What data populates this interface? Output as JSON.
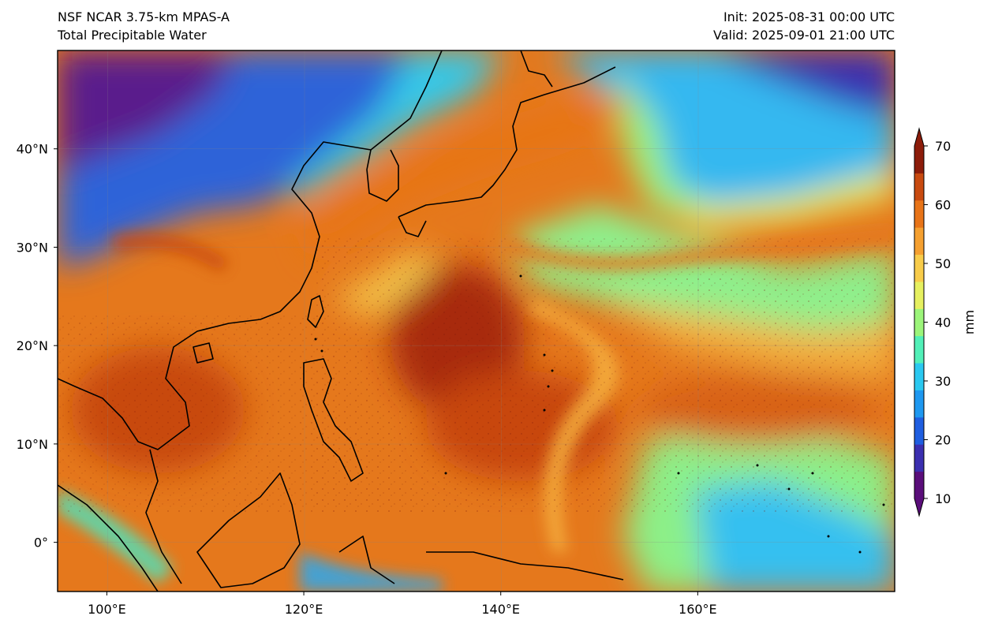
{
  "header": {
    "model": "NSF NCAR 3.75-km MPAS-A",
    "field": "Total Precipitable Water",
    "init": "Init: 2025-08-31 00:00 UTC",
    "valid": "Valid: 2025-09-01 21:00 UTC"
  },
  "map": {
    "lon_range": [
      95,
      180
    ],
    "lat_range": [
      -5,
      50
    ],
    "lon_ticks": [
      {
        "value": 100,
        "label": "100°E"
      },
      {
        "value": 120,
        "label": "120°E"
      },
      {
        "value": 140,
        "label": "140°E"
      },
      {
        "value": 160,
        "label": "160°E"
      }
    ],
    "lat_ticks": [
      {
        "value": 40,
        "label": "40°N"
      },
      {
        "value": 30,
        "label": "30°N"
      },
      {
        "value": 20,
        "label": "20°N"
      },
      {
        "value": 10,
        "label": "10°N"
      },
      {
        "value": 0,
        "label": "0°"
      }
    ]
  },
  "colorbar": {
    "unit": "mm",
    "min": 10,
    "max": 70,
    "extend": "both",
    "ticks": [
      {
        "value": 10,
        "label": "10"
      },
      {
        "value": 20,
        "label": "20"
      },
      {
        "value": 30,
        "label": "30"
      },
      {
        "value": 40,
        "label": "40"
      },
      {
        "value": 50,
        "label": "50"
      },
      {
        "value": 60,
        "label": "60"
      },
      {
        "value": 70,
        "label": "70"
      }
    ],
    "colors": [
      "#5a0e7a",
      "#3b2fb0",
      "#1f5ee0",
      "#1e98f0",
      "#2ac8f0",
      "#52f0b8",
      "#9cf57a",
      "#e6f060",
      "#f8cc4a",
      "#f5a030",
      "#e87418",
      "#c84a10",
      "#8c1c0a"
    ]
  }
}
